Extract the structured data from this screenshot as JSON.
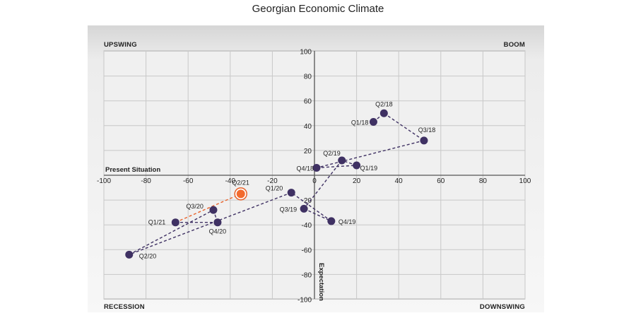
{
  "chart_data": {
    "type": "scatter",
    "title": "Georgian Economic Climate",
    "xlabel": "Present Situation",
    "ylabel": "Expectation",
    "xlim": [
      -100,
      100
    ],
    "ylim": [
      -100,
      100
    ],
    "x_ticks": [
      -100,
      -80,
      -60,
      -40,
      -20,
      0,
      20,
      40,
      60,
      80,
      100
    ],
    "y_ticks": [
      -100,
      -80,
      -60,
      -40,
      -20,
      20,
      40,
      60,
      80,
      100
    ],
    "grid": true,
    "quadrants": {
      "top_left": "UPSWING",
      "top_right": "BOOM",
      "bottom_left": "RECESSION",
      "bottom_right": "DOWNSWING"
    },
    "points": [
      {
        "label": "Q1/18",
        "x": 28,
        "y": 43
      },
      {
        "label": "Q2/18",
        "x": 33,
        "y": 50
      },
      {
        "label": "Q3/18",
        "x": 52,
        "y": 28
      },
      {
        "label": "Q4/18",
        "x": 1,
        "y": 6
      },
      {
        "label": "Q1/19",
        "x": 20,
        "y": 8
      },
      {
        "label": "Q2/19",
        "x": 13,
        "y": 12
      },
      {
        "label": "Q3/19",
        "x": -5,
        "y": -27
      },
      {
        "label": "Q4/19",
        "x": 8,
        "y": -37
      },
      {
        "label": "Q1/20",
        "x": -11,
        "y": -14
      },
      {
        "label": "Q2/20",
        "x": -88,
        "y": -64
      },
      {
        "label": "Q3/20",
        "x": -48,
        "y": -28
      },
      {
        "label": "Q4/20",
        "x": -46,
        "y": -38
      },
      {
        "label": "Q1/21",
        "x": -66,
        "y": -38
      },
      {
        "label": "Q2/21",
        "x": -35,
        "y": -15
      }
    ],
    "highlight": "Q2/21",
    "colors": {
      "point": "#3f3163",
      "line": "#3f3163",
      "highlight_fill": "#f26a2e",
      "highlight_line": "#e8612a",
      "plot_bg": "#f0f0f0",
      "frame_bg": "#dcdcdc",
      "grid": "#c8c8c8"
    }
  }
}
